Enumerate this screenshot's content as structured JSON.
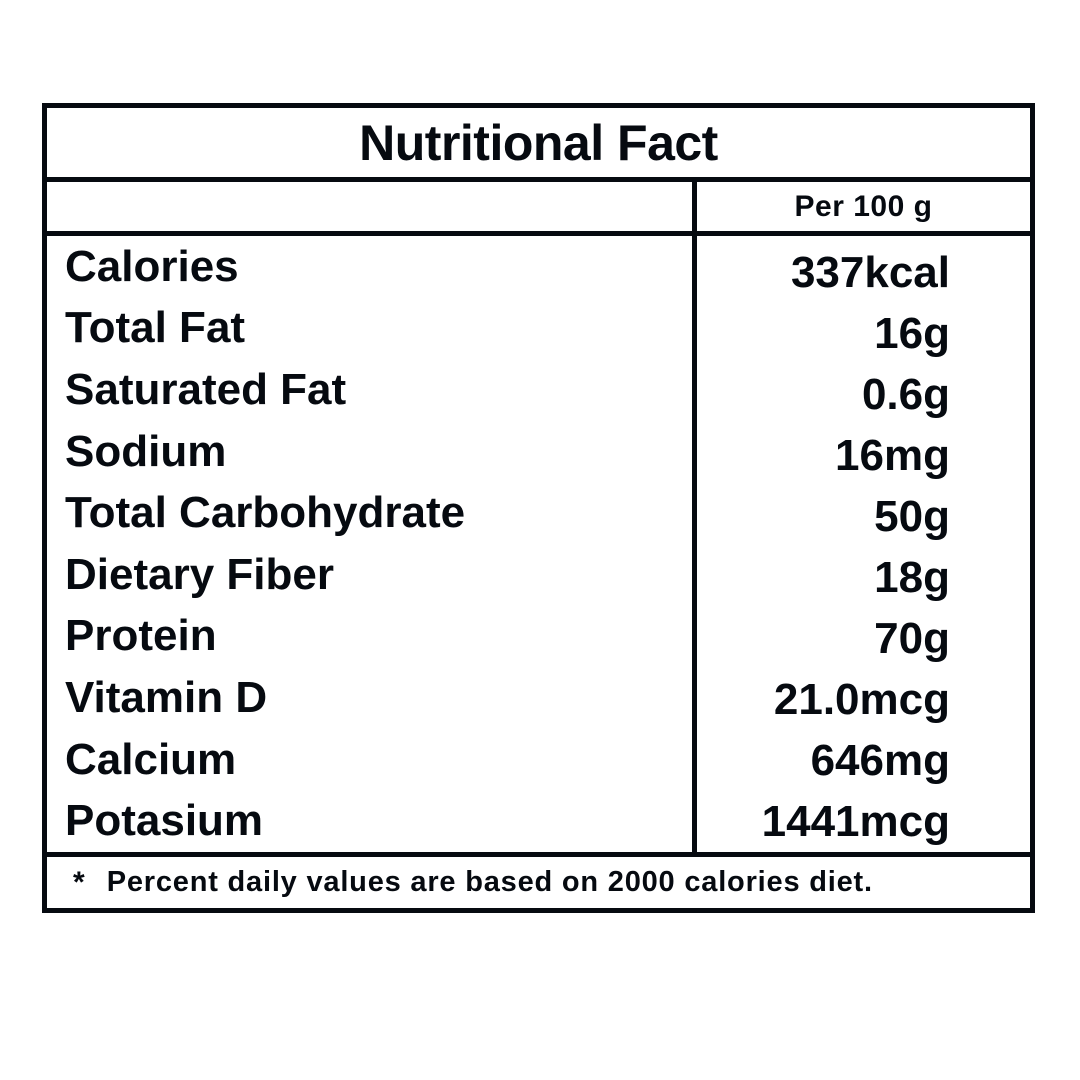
{
  "table": {
    "title": "Nutritional Fact",
    "column_header": "Per 100 g",
    "rows": [
      {
        "label": "Calories",
        "value": "337kcal"
      },
      {
        "label": "Total Fat",
        "value": "16g"
      },
      {
        "label": "Saturated Fat",
        "value": "0.6g"
      },
      {
        "label": "Sodium",
        "value": "16mg"
      },
      {
        "label": "Total Carbohydrate",
        "value": "50g"
      },
      {
        "label": "Dietary Fiber",
        "value": "18g"
      },
      {
        "label": "Protein",
        "value": "70g"
      },
      {
        "label": "Vitamin D",
        "value": "21.0mcg"
      },
      {
        "label": "Calcium",
        "value": "646mg"
      },
      {
        "label": "Potasium",
        "value": "1441mcg"
      }
    ],
    "footnote_marker": "*",
    "footnote_text": "Percent daily values are based on 2000 calories diet.",
    "colors": {
      "ink": "#060a10",
      "background": "#ffffff"
    }
  }
}
